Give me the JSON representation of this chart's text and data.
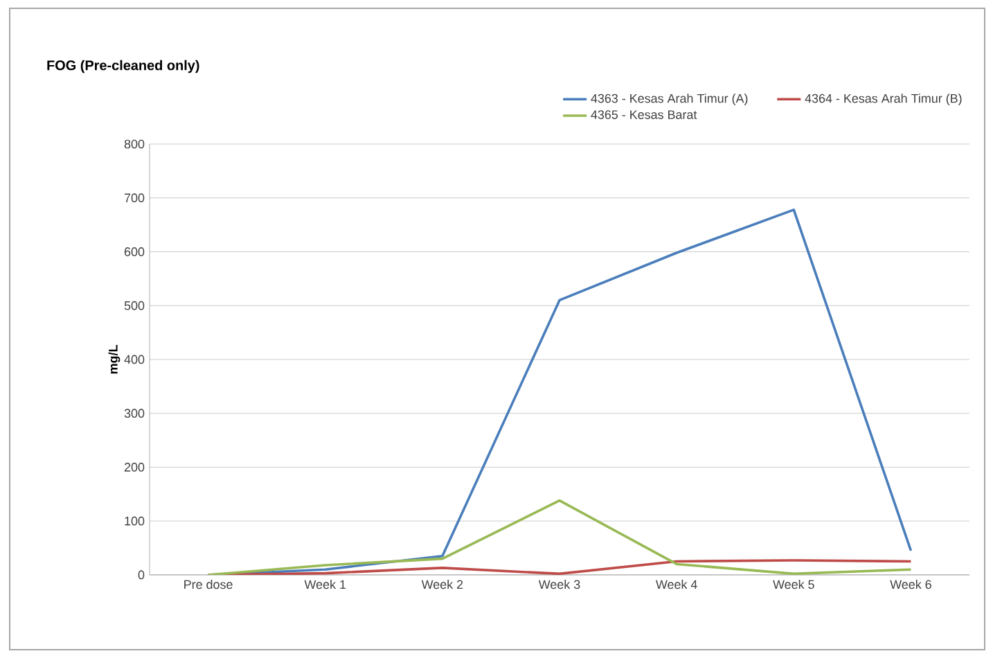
{
  "chart_data": {
    "type": "line",
    "title": "FOG (Pre-cleaned only)",
    "ylabel": "mg/L",
    "categories": [
      "Pre dose",
      "Week 1",
      "Week 2",
      "Week 3",
      "Week 4",
      "Week 5",
      "Week 6"
    ],
    "series": [
      {
        "name": "4363 - Kesas Arah Timur (A)",
        "color": "#4a7ebb",
        "values": [
          0,
          10,
          35,
          510,
          598,
          678,
          45
        ]
      },
      {
        "name": "4364 - Kesas Arah Timur (B)",
        "color": "#be4b48",
        "values": [
          0,
          3,
          13,
          2,
          25,
          27,
          25
        ]
      },
      {
        "name": "4365 - Kesas Barat",
        "color": "#98b954",
        "values": [
          0,
          18,
          30,
          138,
          20,
          2,
          10
        ]
      }
    ],
    "ylim": [
      0,
      800
    ],
    "yticks": [
      0,
      100,
      200,
      300,
      400,
      500,
      600,
      700,
      800
    ],
    "grid": "y",
    "legend": "top right",
    "marker": "none",
    "line_style": "solid"
  }
}
